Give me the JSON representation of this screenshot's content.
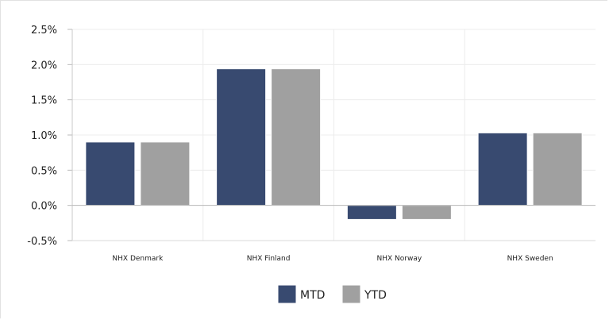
{
  "chart_data": {
    "type": "bar",
    "categories": [
      "NHX Denmark",
      "NHX Finland",
      "NHX Norway",
      "NHX Sweden"
    ],
    "series": [
      {
        "name": "MTD",
        "values": [
          0.9,
          1.94,
          -0.2,
          1.03
        ],
        "color": "#384a70"
      },
      {
        "name": "YTD",
        "values": [
          0.9,
          1.94,
          -0.2,
          1.03
        ],
        "color": "#a0a0a0"
      }
    ],
    "yticks": [
      "2.5%",
      "2.0%",
      "1.5%",
      "1.0%",
      "0.5%",
      "0.0%",
      "-0.5%"
    ],
    "ytick_values": [
      2.5,
      2.0,
      1.5,
      1.0,
      0.5,
      0.0,
      -0.5
    ],
    "ylim": [
      -0.5,
      2.5
    ],
    "grid": true,
    "legend_position": "bottom-center",
    "title": "",
    "xlabel": "",
    "ylabel": ""
  }
}
